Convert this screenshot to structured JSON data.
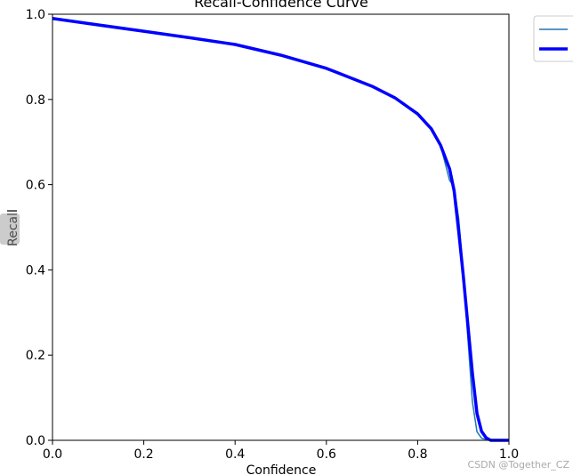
{
  "chart_data": {
    "type": "line",
    "title": "Recall-Confidence Curve",
    "x_label": "Confidence",
    "y_label": "Recall",
    "x": [
      0,
      0.1,
      0.2,
      0.3,
      0.4,
      0.5,
      0.6,
      0.7,
      0.75,
      0.8,
      0.83,
      0.85,
      0.87,
      0.88,
      0.89,
      0.9,
      0.91,
      0.92,
      0.93,
      0.94,
      0.95,
      0.96,
      1.0
    ],
    "series": [
      {
        "color": "#1f77b4",
        "width": 1.5,
        "values": [
          0.99,
          0.975,
          0.96,
          0.945,
          0.929,
          0.904,
          0.873,
          0.831,
          0.804,
          0.766,
          0.731,
          0.693,
          0.61,
          0.595,
          0.52,
          0.39,
          0.24,
          0.09,
          0.02,
          0.005,
          0.002,
          0,
          0
        ]
      },
      {
        "color": "#0000ff",
        "width": 3.5,
        "values": [
          0.99,
          0.975,
          0.96,
          0.945,
          0.929,
          0.904,
          0.873,
          0.831,
          0.804,
          0.766,
          0.731,
          0.693,
          0.637,
          0.585,
          0.49,
          0.386,
          0.271,
          0.157,
          0.063,
          0.021,
          0.006,
          0,
          0
        ]
      }
    ],
    "xlim": [
      0,
      1
    ],
    "ylim": [
      0,
      1
    ],
    "xticks": [
      {
        "value": 0,
        "label": "0.0"
      },
      0.2,
      0.4,
      0.6,
      0.8,
      {
        "value": 1,
        "label": "1.0"
      }
    ],
    "yticks": [
      {
        "value": 0,
        "label": "0.0"
      },
      0.2,
      0.4,
      0.6,
      0.8,
      {
        "value": 1,
        "label": "1.0"
      }
    ]
  },
  "watermark": "CSDN @Together_CZ"
}
